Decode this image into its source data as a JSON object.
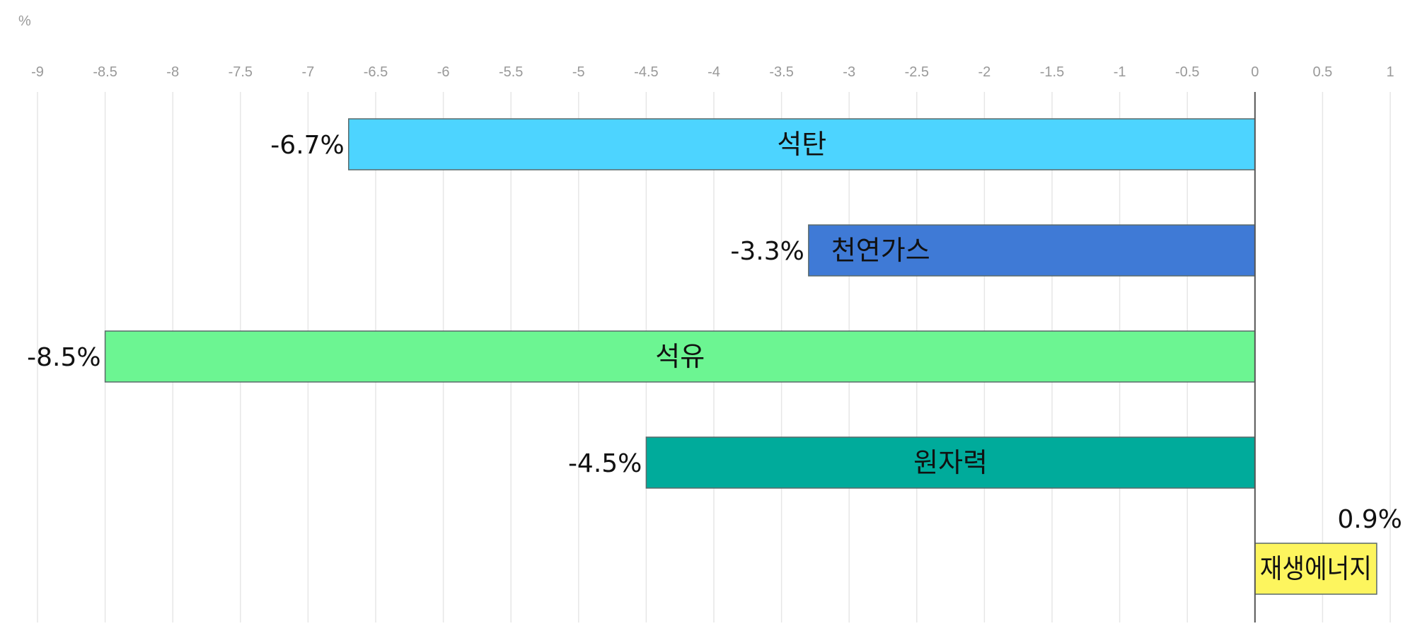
{
  "chart_data": {
    "type": "bar",
    "orientation": "horizontal",
    "unit_label": "%",
    "xlim": [
      -9,
      1
    ],
    "tick_step": 0.5,
    "tick_labels": [
      "-9",
      "-8.5",
      "-8",
      "-7.5",
      "-7",
      "-6.5",
      "-6",
      "-5.5",
      "-5",
      "-4.5",
      "-4",
      "-3.5",
      "-3",
      "-2.5",
      "-2",
      "-1.5",
      "-1",
      "-0.5",
      "0",
      "0.5",
      "1"
    ],
    "grid": true,
    "axis_position": "top",
    "bars": [
      {
        "category": "석탄",
        "value": -6.7,
        "label": "-6.7%",
        "color": "#4dd4ff"
      },
      {
        "category": "천연가스",
        "value": -3.3,
        "label": "-3.3%",
        "color": "#3f7ad6"
      },
      {
        "category": "석유",
        "value": -8.5,
        "label": "-8.5%",
        "color": "#6cf592"
      },
      {
        "category": "원자력",
        "value": -4.5,
        "label": "-4.5%",
        "color": "#00ab9b"
      },
      {
        "category": "재생에너지",
        "value": 0.9,
        "label": "0.9%",
        "color": "#fdf55e"
      }
    ]
  }
}
